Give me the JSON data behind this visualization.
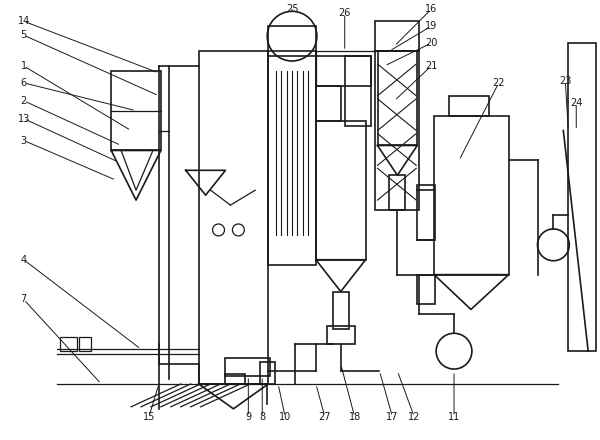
{
  "bg_color": "#ffffff",
  "line_color": "#1a1a1a",
  "fig_width": 6.0,
  "fig_height": 4.4,
  "dpi": 100
}
